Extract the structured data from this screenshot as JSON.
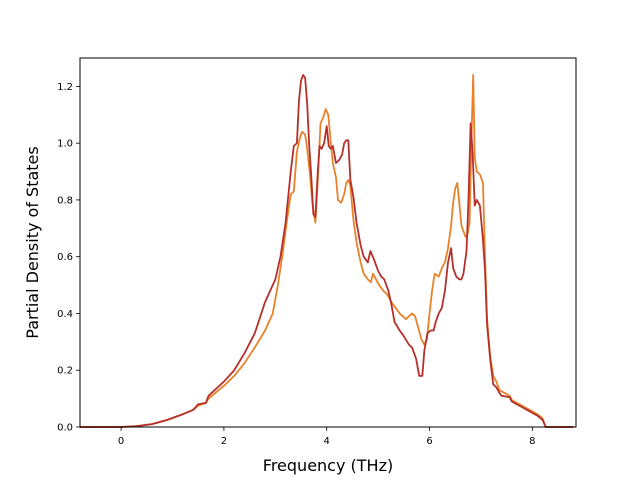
{
  "chart_data": {
    "type": "line",
    "title": "",
    "xlabel": "Frequency (THz)",
    "ylabel": "Partial Density of States",
    "xlim": [
      -0.8,
      8.85
    ],
    "ylim": [
      0.0,
      1.3
    ],
    "xticks": [
      0,
      2,
      4,
      6,
      8
    ],
    "yticks": [
      0.0,
      0.2,
      0.4,
      0.6,
      0.8,
      1.0,
      1.2
    ],
    "grid": false,
    "legend": "none",
    "series": [
      {
        "color": "#e8822a",
        "points": [
          [
            -0.8,
            0.0
          ],
          [
            0.0,
            0.0
          ],
          [
            0.3,
            0.003
          ],
          [
            0.6,
            0.01
          ],
          [
            0.9,
            0.025
          ],
          [
            1.2,
            0.045
          ],
          [
            1.4,
            0.06
          ],
          [
            1.5,
            0.075
          ],
          [
            1.65,
            0.085
          ],
          [
            1.7,
            0.1
          ],
          [
            2.0,
            0.145
          ],
          [
            2.2,
            0.18
          ],
          [
            2.4,
            0.225
          ],
          [
            2.6,
            0.28
          ],
          [
            2.8,
            0.34
          ],
          [
            2.95,
            0.4
          ],
          [
            3.05,
            0.5
          ],
          [
            3.15,
            0.62
          ],
          [
            3.22,
            0.72
          ],
          [
            3.3,
            0.82
          ],
          [
            3.36,
            0.83
          ],
          [
            3.42,
            0.97
          ],
          [
            3.48,
            1.02
          ],
          [
            3.52,
            1.04
          ],
          [
            3.58,
            1.03
          ],
          [
            3.62,
            0.98
          ],
          [
            3.68,
            0.88
          ],
          [
            3.72,
            0.79
          ],
          [
            3.76,
            0.74
          ],
          [
            3.78,
            0.72
          ],
          [
            3.82,
            0.85
          ],
          [
            3.88,
            1.07
          ],
          [
            3.93,
            1.09
          ],
          [
            3.98,
            1.12
          ],
          [
            4.03,
            1.1
          ],
          [
            4.08,
            1.0
          ],
          [
            4.12,
            0.93
          ],
          [
            4.18,
            0.88
          ],
          [
            4.22,
            0.8
          ],
          [
            4.28,
            0.79
          ],
          [
            4.34,
            0.82
          ],
          [
            4.38,
            0.86
          ],
          [
            4.42,
            0.87
          ],
          [
            4.46,
            0.85
          ],
          [
            4.52,
            0.73
          ],
          [
            4.58,
            0.65
          ],
          [
            4.66,
            0.58
          ],
          [
            4.72,
            0.54
          ],
          [
            4.8,
            0.52
          ],
          [
            4.86,
            0.51
          ],
          [
            4.9,
            0.54
          ],
          [
            4.96,
            0.52
          ],
          [
            5.02,
            0.5
          ],
          [
            5.1,
            0.48
          ],
          [
            5.16,
            0.47
          ],
          [
            5.2,
            0.46
          ],
          [
            5.26,
            0.44
          ],
          [
            5.34,
            0.42
          ],
          [
            5.42,
            0.4
          ],
          [
            5.48,
            0.39
          ],
          [
            5.54,
            0.38
          ],
          [
            5.6,
            0.39
          ],
          [
            5.66,
            0.4
          ],
          [
            5.72,
            0.39
          ],
          [
            5.78,
            0.35
          ],
          [
            5.84,
            0.31
          ],
          [
            5.9,
            0.29
          ],
          [
            5.95,
            0.31
          ],
          [
            6.0,
            0.4
          ],
          [
            6.05,
            0.48
          ],
          [
            6.1,
            0.54
          ],
          [
            6.18,
            0.53
          ],
          [
            6.24,
            0.56
          ],
          [
            6.3,
            0.58
          ],
          [
            6.36,
            0.63
          ],
          [
            6.42,
            0.71
          ],
          [
            6.46,
            0.79
          ],
          [
            6.5,
            0.84
          ],
          [
            6.54,
            0.86
          ],
          [
            6.58,
            0.79
          ],
          [
            6.62,
            0.71
          ],
          [
            6.66,
            0.69
          ],
          [
            6.7,
            0.67
          ],
          [
            6.74,
            0.68
          ],
          [
            6.78,
            0.72
          ],
          [
            6.82,
            1.04
          ],
          [
            6.85,
            1.24
          ],
          [
            6.88,
            0.95
          ],
          [
            6.92,
            0.9
          ],
          [
            6.98,
            0.89
          ],
          [
            7.04,
            0.86
          ],
          [
            7.08,
            0.6
          ],
          [
            7.12,
            0.38
          ],
          [
            7.18,
            0.25
          ],
          [
            7.24,
            0.18
          ],
          [
            7.3,
            0.16
          ],
          [
            7.36,
            0.13
          ],
          [
            7.46,
            0.12
          ],
          [
            7.56,
            0.11
          ],
          [
            7.6,
            0.095
          ],
          [
            7.8,
            0.075
          ],
          [
            8.0,
            0.055
          ],
          [
            8.1,
            0.045
          ],
          [
            8.2,
            0.03
          ],
          [
            8.26,
            0.0
          ],
          [
            8.4,
            0.0
          ],
          [
            8.8,
            0.0
          ]
        ]
      },
      {
        "color": "#b5302a",
        "points": [
          [
            -0.8,
            0.0
          ],
          [
            0.0,
            0.0
          ],
          [
            0.3,
            0.003
          ],
          [
            0.6,
            0.01
          ],
          [
            0.9,
            0.025
          ],
          [
            1.2,
            0.045
          ],
          [
            1.4,
            0.06
          ],
          [
            1.5,
            0.08
          ],
          [
            1.65,
            0.085
          ],
          [
            1.7,
            0.11
          ],
          [
            2.0,
            0.16
          ],
          [
            2.2,
            0.2
          ],
          [
            2.4,
            0.26
          ],
          [
            2.6,
            0.33
          ],
          [
            2.8,
            0.44
          ],
          [
            2.9,
            0.48
          ],
          [
            3.0,
            0.52
          ],
          [
            3.1,
            0.6
          ],
          [
            3.2,
            0.72
          ],
          [
            3.3,
            0.9
          ],
          [
            3.36,
            0.99
          ],
          [
            3.42,
            1.0
          ],
          [
            3.46,
            1.15
          ],
          [
            3.5,
            1.22
          ],
          [
            3.54,
            1.24
          ],
          [
            3.58,
            1.23
          ],
          [
            3.62,
            1.14
          ],
          [
            3.66,
            0.99
          ],
          [
            3.7,
            0.88
          ],
          [
            3.74,
            0.75
          ],
          [
            3.78,
            0.74
          ],
          [
            3.82,
            0.88
          ],
          [
            3.86,
            0.99
          ],
          [
            3.9,
            0.98
          ],
          [
            3.95,
            1.0
          ],
          [
            4.0,
            1.06
          ],
          [
            4.04,
            0.99
          ],
          [
            4.08,
            0.98
          ],
          [
            4.12,
            0.99
          ],
          [
            4.18,
            0.93
          ],
          [
            4.24,
            0.94
          ],
          [
            4.3,
            0.96
          ],
          [
            4.34,
            1.0
          ],
          [
            4.38,
            1.01
          ],
          [
            4.42,
            1.01
          ],
          [
            4.46,
            0.87
          ],
          [
            4.52,
            0.81
          ],
          [
            4.58,
            0.72
          ],
          [
            4.66,
            0.64
          ],
          [
            4.72,
            0.6
          ],
          [
            4.8,
            0.58
          ],
          [
            4.85,
            0.62
          ],
          [
            4.92,
            0.59
          ],
          [
            5.0,
            0.55
          ],
          [
            5.06,
            0.53
          ],
          [
            5.12,
            0.52
          ],
          [
            5.2,
            0.48
          ],
          [
            5.26,
            0.43
          ],
          [
            5.32,
            0.37
          ],
          [
            5.42,
            0.34
          ],
          [
            5.5,
            0.32
          ],
          [
            5.6,
            0.29
          ],
          [
            5.66,
            0.28
          ],
          [
            5.74,
            0.24
          ],
          [
            5.8,
            0.18
          ],
          [
            5.86,
            0.18
          ],
          [
            5.9,
            0.27
          ],
          [
            5.96,
            0.33
          ],
          [
            6.02,
            0.34
          ],
          [
            6.08,
            0.34
          ],
          [
            6.12,
            0.37
          ],
          [
            6.18,
            0.4
          ],
          [
            6.24,
            0.42
          ],
          [
            6.3,
            0.48
          ],
          [
            6.36,
            0.58
          ],
          [
            6.42,
            0.63
          ],
          [
            6.46,
            0.56
          ],
          [
            6.52,
            0.53
          ],
          [
            6.58,
            0.52
          ],
          [
            6.62,
            0.52
          ],
          [
            6.66,
            0.54
          ],
          [
            6.72,
            0.62
          ],
          [
            6.76,
            0.81
          ],
          [
            6.8,
            1.07
          ],
          [
            6.84,
            0.96
          ],
          [
            6.88,
            0.78
          ],
          [
            6.92,
            0.8
          ],
          [
            6.98,
            0.78
          ],
          [
            7.04,
            0.66
          ],
          [
            7.08,
            0.55
          ],
          [
            7.12,
            0.36
          ],
          [
            7.18,
            0.24
          ],
          [
            7.24,
            0.15
          ],
          [
            7.3,
            0.14
          ],
          [
            7.36,
            0.12
          ],
          [
            7.4,
            0.11
          ],
          [
            7.56,
            0.105
          ],
          [
            7.6,
            0.09
          ],
          [
            7.8,
            0.07
          ],
          [
            8.0,
            0.05
          ],
          [
            8.1,
            0.04
          ],
          [
            8.2,
            0.025
          ],
          [
            8.26,
            0.0
          ],
          [
            8.4,
            0.0
          ],
          [
            8.8,
            0.0
          ]
        ]
      }
    ]
  }
}
